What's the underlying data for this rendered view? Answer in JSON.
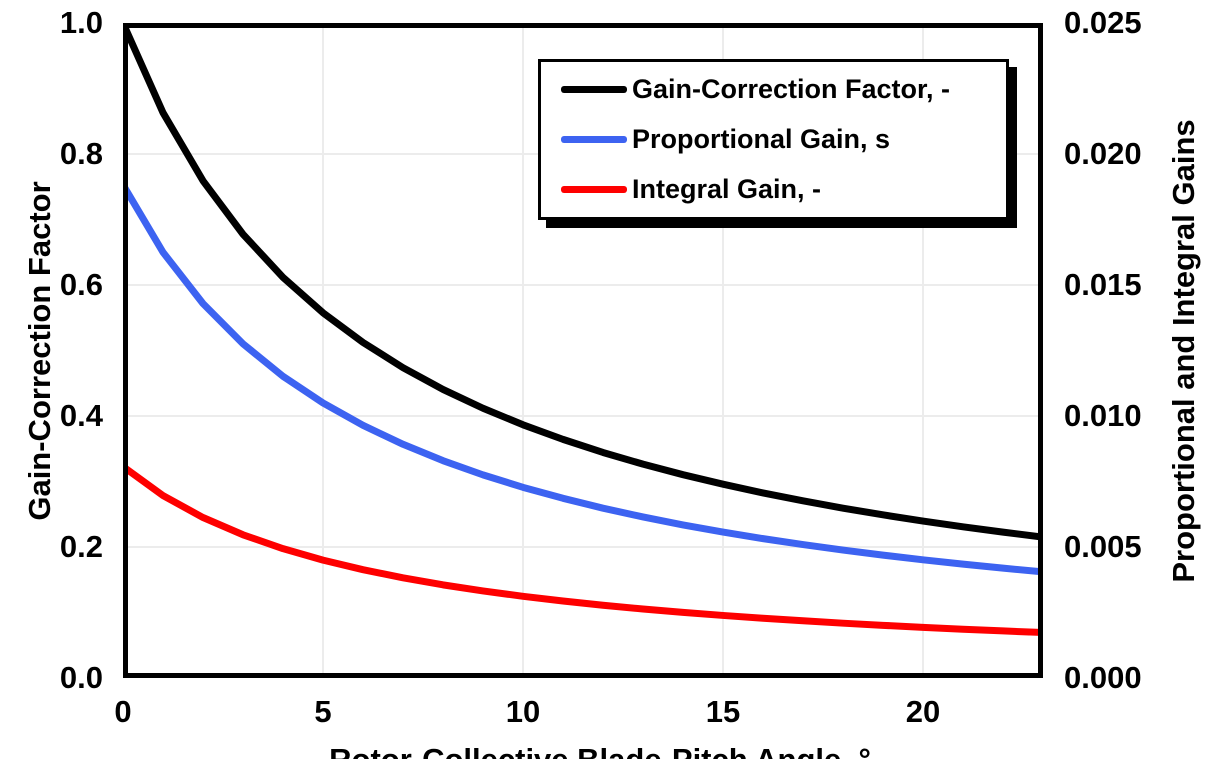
{
  "chart_data": {
    "type": "line",
    "x": [
      0,
      1,
      2,
      3,
      4,
      5,
      6,
      7,
      8,
      9,
      10,
      11,
      12,
      13,
      14,
      15,
      16,
      17,
      18,
      19,
      20,
      21,
      22,
      23
    ],
    "series": [
      {
        "name": "Gain-Correction Factor, -",
        "axis": "left",
        "color": "#000000",
        "values": [
          1.0,
          0.8631,
          0.7591,
          0.6775,
          0.6117,
          0.5576,
          0.5123,
          0.4738,
          0.4406,
          0.4118,
          0.3866,
          0.3643,
          0.3443,
          0.3265,
          0.3104,
          0.2959,
          0.2826,
          0.2705,
          0.2593,
          0.2491,
          0.2396,
          0.2308,
          0.2227,
          0.2151
        ]
      },
      {
        "name": "Proportional Gain, s",
        "axis": "right",
        "color": "#3D63F1",
        "values": [
          0.018827,
          0.016249,
          0.014292,
          0.012755,
          0.011516,
          0.010498,
          0.009645,
          0.00892,
          0.008295,
          0.007753,
          0.007278,
          0.006859,
          0.006482,
          0.006147,
          0.005844,
          0.005571,
          0.00532,
          0.005093,
          0.004882,
          0.00469,
          0.004511,
          0.004345,
          0.004193,
          0.00405
        ]
      },
      {
        "name": "Integral Gain, -",
        "axis": "right",
        "color": "#FE0000",
        "values": [
          0.008069,
          0.006964,
          0.006125,
          0.005467,
          0.004936,
          0.004499,
          0.004134,
          0.003823,
          0.003555,
          0.003323,
          0.003119,
          0.002939,
          0.002778,
          0.002634,
          0.002504,
          0.002388,
          0.00228,
          0.002183,
          0.002092,
          0.00201,
          0.001933,
          0.001862,
          0.001797,
          0.001735
        ]
      }
    ],
    "xlabel": "Rotor-Collective Blade-Pitch Angle, °",
    "ylabel_left": "Gain-Correction Factor",
    "ylabel_right": "Proportional and Integral Gains",
    "xlim": [
      0,
      23
    ],
    "ylim_left": [
      0,
      1.0
    ],
    "ylim_right": [
      0,
      0.025
    ],
    "xticks": [
      0,
      5,
      10,
      15,
      20
    ],
    "yticks_left": [
      1.0,
      0.8,
      0.6,
      0.4,
      0.2,
      0.0
    ],
    "yticks_left_labels": [
      "1.0",
      "0.8",
      "0.6",
      "0.4",
      "0.2",
      "0.0"
    ],
    "yticks_right_labels": [
      "0.025",
      "0.020",
      "0.015",
      "0.010",
      "0.005",
      "0.000"
    ],
    "grid": true,
    "gridline_color": "#ECECEC",
    "frame_color": "#000000",
    "legend_position": "top-center-right"
  }
}
